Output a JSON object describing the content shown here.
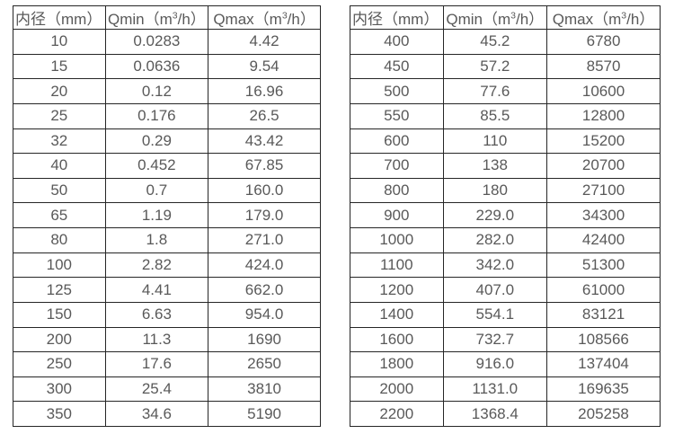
{
  "page": {
    "background": "#ffffff",
    "border_color": "#262626",
    "text_color": "#595959"
  },
  "tables": [
    {
      "name": "flow-spec-table-small-diameters",
      "headers": {
        "diameter": "内径（mm）",
        "qmin": {
          "pre": "Qmin（m",
          "sup": "3",
          "post": "/h）"
        },
        "qmax": {
          "pre": "Qmax（m",
          "sup": "3",
          "post": "/h）"
        }
      },
      "rows": [
        [
          "10",
          "0.0283",
          "4.42"
        ],
        [
          "15",
          "0.0636",
          "9.54"
        ],
        [
          "20",
          "0.12",
          "16.96"
        ],
        [
          "25",
          "0.176",
          "26.5"
        ],
        [
          "32",
          "0.29",
          "43.42"
        ],
        [
          "40",
          "0.452",
          "67.85"
        ],
        [
          "50",
          "0.7",
          "160.0"
        ],
        [
          "65",
          "1.19",
          "179.0"
        ],
        [
          "80",
          "1.8",
          "271.0"
        ],
        [
          "100",
          "2.82",
          "424.0"
        ],
        [
          "125",
          "4.41",
          "662.0"
        ],
        [
          "150",
          "6.63",
          "954.0"
        ],
        [
          "200",
          "11.3",
          "1690"
        ],
        [
          "250",
          "17.6",
          "2650"
        ],
        [
          "300",
          "25.4",
          "3810"
        ],
        [
          "350",
          "34.6",
          "5190"
        ]
      ]
    },
    {
      "name": "flow-spec-table-large-diameters",
      "headers": {
        "diameter": "内径（mm）",
        "qmin": {
          "pre": "Qmin（m",
          "sup": "3",
          "post": "/h）"
        },
        "qmax": {
          "pre": "Qmax（m",
          "sup": "3",
          "post": "/h）"
        }
      },
      "rows": [
        [
          "400",
          "45.2",
          "6780"
        ],
        [
          "450",
          "57.2",
          "8570"
        ],
        [
          "500",
          "77.6",
          "10600"
        ],
        [
          "550",
          "85.5",
          "12800"
        ],
        [
          "600",
          "110",
          "15200"
        ],
        [
          "700",
          "138",
          "20700"
        ],
        [
          "800",
          "180",
          "27100"
        ],
        [
          "900",
          "229.0",
          "34300"
        ],
        [
          "1000",
          "282.0",
          "42400"
        ],
        [
          "1100",
          "342.0",
          "51300"
        ],
        [
          "1200",
          "407.0",
          "61000"
        ],
        [
          "1400",
          "554.1",
          "83121"
        ],
        [
          "1600",
          "732.7",
          "108566"
        ],
        [
          "1800",
          "916.0",
          "137404"
        ],
        [
          "2000",
          "1131.0",
          "169635"
        ],
        [
          "2200",
          "1368.4",
          "205258"
        ]
      ]
    }
  ]
}
